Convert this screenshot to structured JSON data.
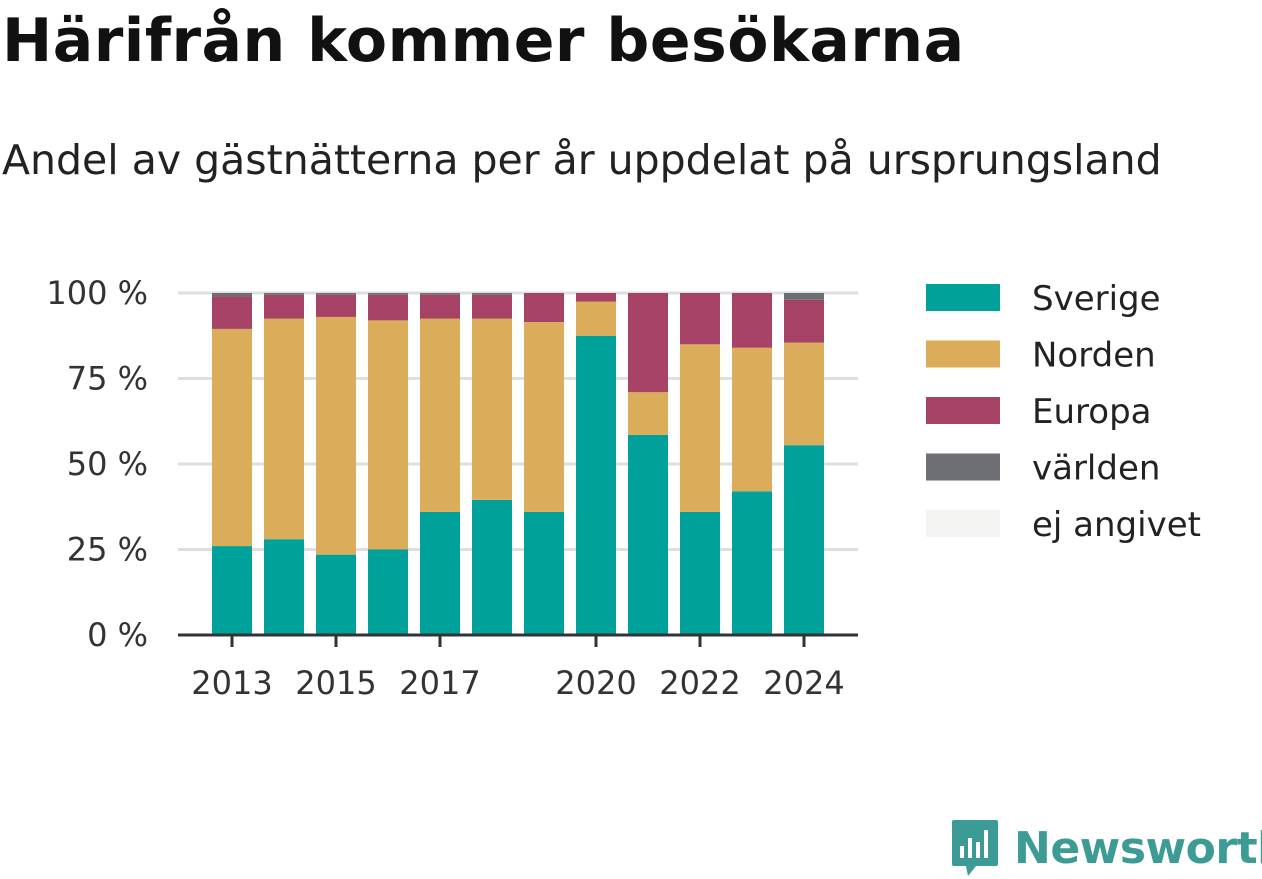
{
  "title": "Härifrån kommer besökarna",
  "subtitle": "Andel av gästnätterna per år uppdelat på ursprungsland",
  "brand": {
    "name": "Newsworthy"
  },
  "chart_data": {
    "type": "bar",
    "stacked": true,
    "categories": [
      "2013",
      "2014",
      "2015",
      "2016",
      "2017",
      "2018",
      "2019",
      "2020",
      "2021",
      "2022",
      "2023",
      "2024"
    ],
    "x_tick_labels": [
      "2013",
      "",
      "2015",
      "",
      "2017",
      "",
      "",
      "2020",
      "",
      "2022",
      "",
      "2024"
    ],
    "y_ticks": [
      0,
      25,
      50,
      75,
      100
    ],
    "y_tick_labels": [
      "0 %",
      "25 %",
      "50 %",
      "75 %",
      "100 %"
    ],
    "ylim": [
      0,
      100
    ],
    "grid": true,
    "legend_position": "right",
    "series": [
      {
        "name": "Sverige",
        "color": "#00a19a",
        "values": [
          26,
          28,
          23.5,
          25,
          36,
          39.5,
          36,
          87.5,
          58.5,
          36,
          42,
          55.5
        ]
      },
      {
        "name": "Norden",
        "color": "#dbac5a",
        "values": [
          63.5,
          64.5,
          69.5,
          67,
          56.5,
          53,
          55.5,
          10,
          12.5,
          49,
          42,
          30
        ]
      },
      {
        "name": "Europa",
        "color": "#a64266",
        "values": [
          9.5,
          7,
          6.5,
          7.5,
          7,
          7,
          8.5,
          2.5,
          29,
          15,
          16,
          12.5
        ]
      },
      {
        "name": "världen",
        "color": "#6e6e75",
        "values": [
          1,
          0.5,
          0.5,
          0.5,
          0.5,
          0.5,
          0,
          0,
          0,
          0,
          0,
          2
        ]
      },
      {
        "name": "ej angivet",
        "color": "#f4f4f2",
        "values": [
          0,
          0,
          0,
          0,
          0,
          0,
          0,
          0,
          0,
          0,
          0,
          0
        ]
      }
    ]
  }
}
